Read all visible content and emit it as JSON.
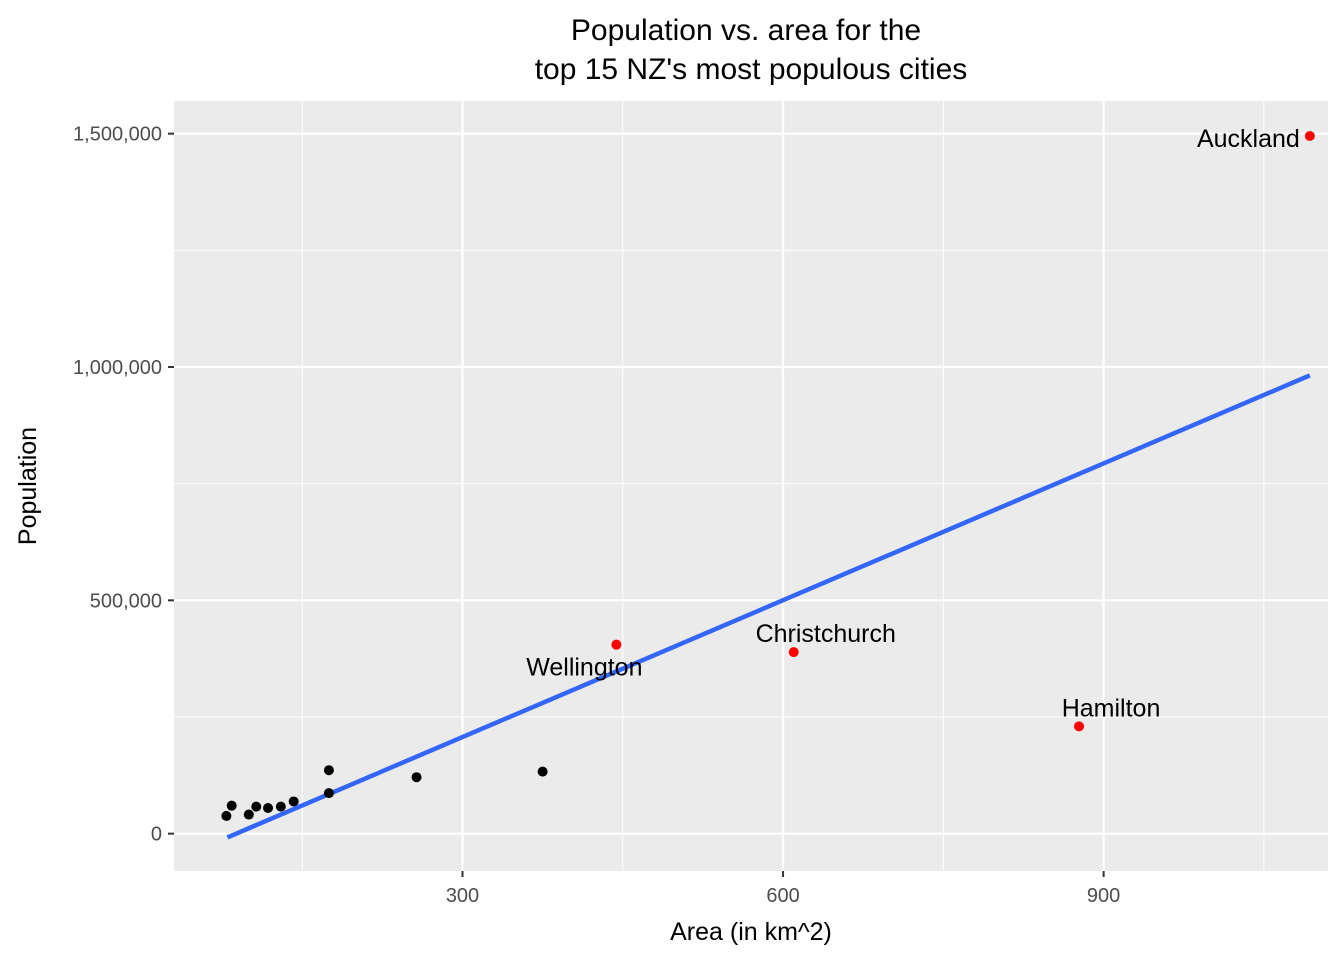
{
  "chart_data": {
    "type": "scatter",
    "title_lines": [
      "Population vs. area for the",
      "top 15 NZ's most populous cities"
    ],
    "xlabel": "Area (in km^2)",
    "ylabel": "Population",
    "xlim": [
      30,
      1110
    ],
    "ylim": [
      -80000,
      1570000
    ],
    "x_ticks": [
      300,
      600,
      900
    ],
    "x_tick_labels": [
      "300",
      "600",
      "900"
    ],
    "x_minor_ticks": [
      150,
      450,
      750,
      1050
    ],
    "y_ticks": [
      0,
      500000,
      1000000,
      1500000
    ],
    "y_tick_labels": [
      "0",
      "500,000",
      "1,000,000",
      "1,500,000"
    ],
    "y_minor_ticks": [
      250000,
      750000,
      1250000
    ],
    "grid": true,
    "background_color": "#ebebeb",
    "grid_color": "#ffffff",
    "highlight_color": "#ff0000",
    "point_color": "#000000",
    "points": [
      {
        "x": 1093,
        "y": 1495000,
        "label": "Auckland",
        "highlight": true
      },
      {
        "x": 444,
        "y": 405000,
        "label": "Wellington",
        "highlight": true
      },
      {
        "x": 610,
        "y": 389000,
        "label": "Christchurch",
        "highlight": true
      },
      {
        "x": 877,
        "y": 230000,
        "label": "Hamilton",
        "highlight": true
      },
      {
        "x": 375,
        "y": 133000,
        "label": "",
        "highlight": false
      },
      {
        "x": 257,
        "y": 121000,
        "label": "",
        "highlight": false
      },
      {
        "x": 175,
        "y": 136000,
        "label": "",
        "highlight": false
      },
      {
        "x": 175,
        "y": 87000,
        "label": "",
        "highlight": false
      },
      {
        "x": 142,
        "y": 69000,
        "label": "",
        "highlight": false
      },
      {
        "x": 130,
        "y": 58000,
        "label": "",
        "highlight": false
      },
      {
        "x": 118,
        "y": 55000,
        "label": "",
        "highlight": false
      },
      {
        "x": 107,
        "y": 58000,
        "label": "",
        "highlight": false
      },
      {
        "x": 100,
        "y": 41000,
        "label": "",
        "highlight": false
      },
      {
        "x": 84,
        "y": 60000,
        "label": "",
        "highlight": false
      },
      {
        "x": 79,
        "y": 38000,
        "label": "",
        "highlight": false
      }
    ],
    "trend_line": {
      "color": "#3366ff",
      "points": [
        [
          80,
          -8000
        ],
        [
          1093,
          982000
        ]
      ]
    }
  }
}
